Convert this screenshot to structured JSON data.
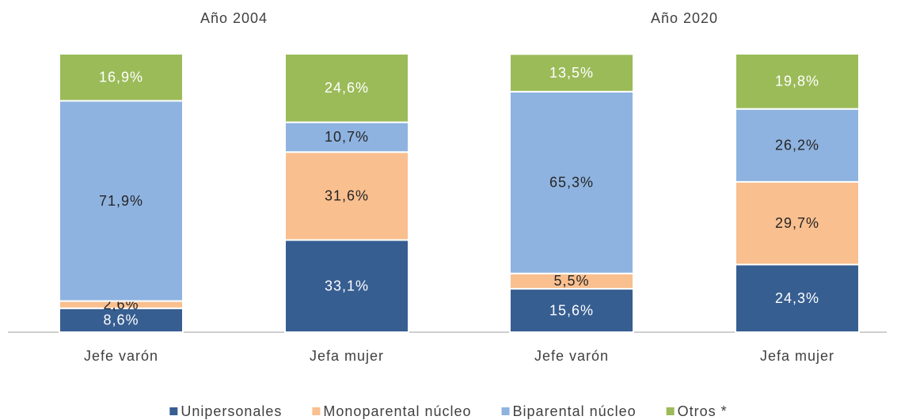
{
  "chart_data": {
    "type": "stacked_bar",
    "group_labels": [
      "Año 2004",
      "Año 2020"
    ],
    "categories": [
      "Jefe varón",
      "Jefa mujer",
      "Jefe varón",
      "Jefa mujer"
    ],
    "ylim": [
      0,
      100
    ],
    "series": [
      {
        "name": "Unipersonales",
        "color": "#375e91",
        "label_color": "#ffffff",
        "values": [
          8.6,
          33.1,
          15.6,
          24.3
        ],
        "value_labels": [
          "8,6%",
          "33,1%",
          "15,6%",
          "24,3%"
        ]
      },
      {
        "name": "Monoparental núcleo",
        "color": "#f9bf8f",
        "label_color": "#262626",
        "values": [
          2.6,
          31.6,
          5.5,
          29.7
        ],
        "value_labels": [
          "2,6%",
          "31,6%",
          "5,5%",
          "29,7%"
        ]
      },
      {
        "name": "Biparental núcleo",
        "color": "#8eb3e0",
        "label_color": "#262626",
        "values": [
          71.9,
          10.7,
          65.3,
          26.2
        ],
        "value_labels": [
          "71,9%",
          "10,7%",
          "65,3%",
          "26,2%"
        ]
      },
      {
        "name": "Otros *",
        "color": "#9bbb59",
        "label_color": "#ffffff",
        "values": [
          16.9,
          24.6,
          13.5,
          19.8
        ],
        "value_labels": [
          "16,9%",
          "24,6%",
          "13,5%",
          "19,8%"
        ]
      }
    ]
  }
}
